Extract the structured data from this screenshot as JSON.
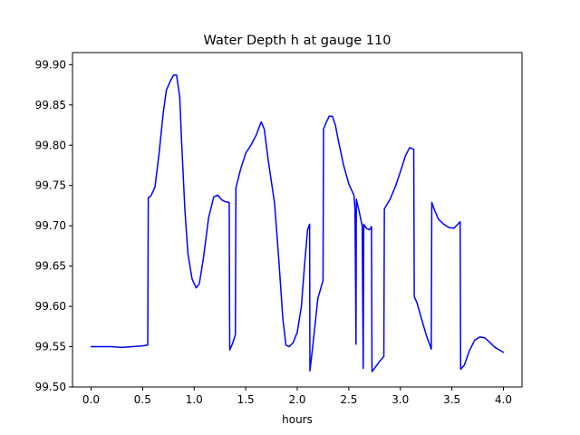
{
  "chart_data": {
    "type": "line",
    "title": "Water Depth h at gauge 110",
    "xlabel": "hours",
    "ylabel": "",
    "xlim": [
      -0.18,
      4.18
    ],
    "ylim": [
      99.5,
      99.915
    ],
    "x_ticks": [
      0.0,
      0.5,
      1.0,
      1.5,
      2.0,
      2.5,
      3.0,
      3.5,
      4.0
    ],
    "x_tick_labels": [
      "0.0",
      "0.5",
      "1.0",
      "1.5",
      "2.0",
      "2.5",
      "3.0",
      "3.5",
      "4.0"
    ],
    "y_ticks": [
      99.5,
      99.55,
      99.6,
      99.65,
      99.7,
      99.75,
      99.8,
      99.85,
      99.9
    ],
    "y_tick_labels": [
      "99.50",
      "99.55",
      "99.60",
      "99.65",
      "99.70",
      "99.75",
      "99.80",
      "99.85",
      "99.90"
    ],
    "grid": false,
    "series": [
      {
        "color": "#0000ff",
        "points": [
          [
            0.0,
            99.55
          ],
          [
            0.1,
            99.55
          ],
          [
            0.2,
            99.55
          ],
          [
            0.3,
            99.549
          ],
          [
            0.4,
            99.55
          ],
          [
            0.5,
            99.551
          ],
          [
            0.55,
            99.552
          ],
          [
            0.555,
            99.735
          ],
          [
            0.58,
            99.737
          ],
          [
            0.62,
            99.748
          ],
          [
            0.66,
            99.79
          ],
          [
            0.7,
            99.84
          ],
          [
            0.73,
            99.868
          ],
          [
            0.77,
            99.88
          ],
          [
            0.8,
            99.887
          ],
          [
            0.83,
            99.887
          ],
          [
            0.86,
            99.86
          ],
          [
            0.88,
            99.8
          ],
          [
            0.91,
            99.72
          ],
          [
            0.94,
            99.665
          ],
          [
            0.98,
            99.634
          ],
          [
            1.02,
            99.623
          ],
          [
            1.05,
            99.628
          ],
          [
            1.09,
            99.66
          ],
          [
            1.14,
            99.71
          ],
          [
            1.19,
            99.736
          ],
          [
            1.23,
            99.738
          ],
          [
            1.27,
            99.732
          ],
          [
            1.3,
            99.73
          ],
          [
            1.34,
            99.729
          ],
          [
            1.345,
            99.546
          ],
          [
            1.37,
            99.553
          ],
          [
            1.4,
            99.565
          ],
          [
            1.405,
            99.747
          ],
          [
            1.45,
            99.77
          ],
          [
            1.5,
            99.79
          ],
          [
            1.55,
            99.8
          ],
          [
            1.6,
            99.812
          ],
          [
            1.65,
            99.829
          ],
          [
            1.68,
            99.82
          ],
          [
            1.72,
            99.78
          ],
          [
            1.78,
            99.728
          ],
          [
            1.82,
            99.66
          ],
          [
            1.86,
            99.585
          ],
          [
            1.89,
            99.552
          ],
          [
            1.92,
            99.55
          ],
          [
            1.96,
            99.555
          ],
          [
            2.0,
            99.568
          ],
          [
            2.04,
            99.6
          ],
          [
            2.07,
            99.65
          ],
          [
            2.1,
            99.695
          ],
          [
            2.12,
            99.702
          ],
          [
            2.123,
            99.52
          ],
          [
            2.15,
            99.55
          ],
          [
            2.2,
            99.61
          ],
          [
            2.25,
            99.632
          ],
          [
            2.255,
            99.82
          ],
          [
            2.28,
            99.828
          ],
          [
            2.31,
            99.836
          ],
          [
            2.34,
            99.836
          ],
          [
            2.37,
            99.825
          ],
          [
            2.4,
            99.805
          ],
          [
            2.45,
            99.775
          ],
          [
            2.5,
            99.752
          ],
          [
            2.55,
            99.738
          ],
          [
            2.56,
            99.72
          ],
          [
            2.57,
            99.553
          ],
          [
            2.573,
            99.733
          ],
          [
            2.6,
            99.718
          ],
          [
            2.63,
            99.7
          ],
          [
            2.64,
            99.523
          ],
          [
            2.645,
            99.702
          ],
          [
            2.67,
            99.697
          ],
          [
            2.7,
            99.695
          ],
          [
            2.72,
            99.699
          ],
          [
            2.725,
            99.519
          ],
          [
            2.76,
            99.525
          ],
          [
            2.8,
            99.532
          ],
          [
            2.84,
            99.538
          ],
          [
            2.845,
            99.721
          ],
          [
            2.9,
            99.733
          ],
          [
            2.95,
            99.748
          ],
          [
            3.0,
            99.767
          ],
          [
            3.05,
            99.787
          ],
          [
            3.09,
            99.797
          ],
          [
            3.13,
            99.795
          ],
          [
            3.135,
            99.612
          ],
          [
            3.16,
            99.605
          ],
          [
            3.2,
            99.587
          ],
          [
            3.25,
            99.565
          ],
          [
            3.3,
            99.547
          ],
          [
            3.305,
            99.729
          ],
          [
            3.33,
            99.72
          ],
          [
            3.37,
            99.708
          ],
          [
            3.42,
            99.702
          ],
          [
            3.47,
            99.698
          ],
          [
            3.52,
            99.697
          ],
          [
            3.58,
            99.705
          ],
          [
            3.585,
            99.522
          ],
          [
            3.62,
            99.527
          ],
          [
            3.67,
            99.545
          ],
          [
            3.72,
            99.558
          ],
          [
            3.77,
            99.562
          ],
          [
            3.82,
            99.561
          ],
          [
            3.87,
            99.555
          ],
          [
            3.92,
            99.549
          ],
          [
            3.96,
            99.546
          ],
          [
            4.0,
            99.543
          ]
        ]
      }
    ]
  }
}
